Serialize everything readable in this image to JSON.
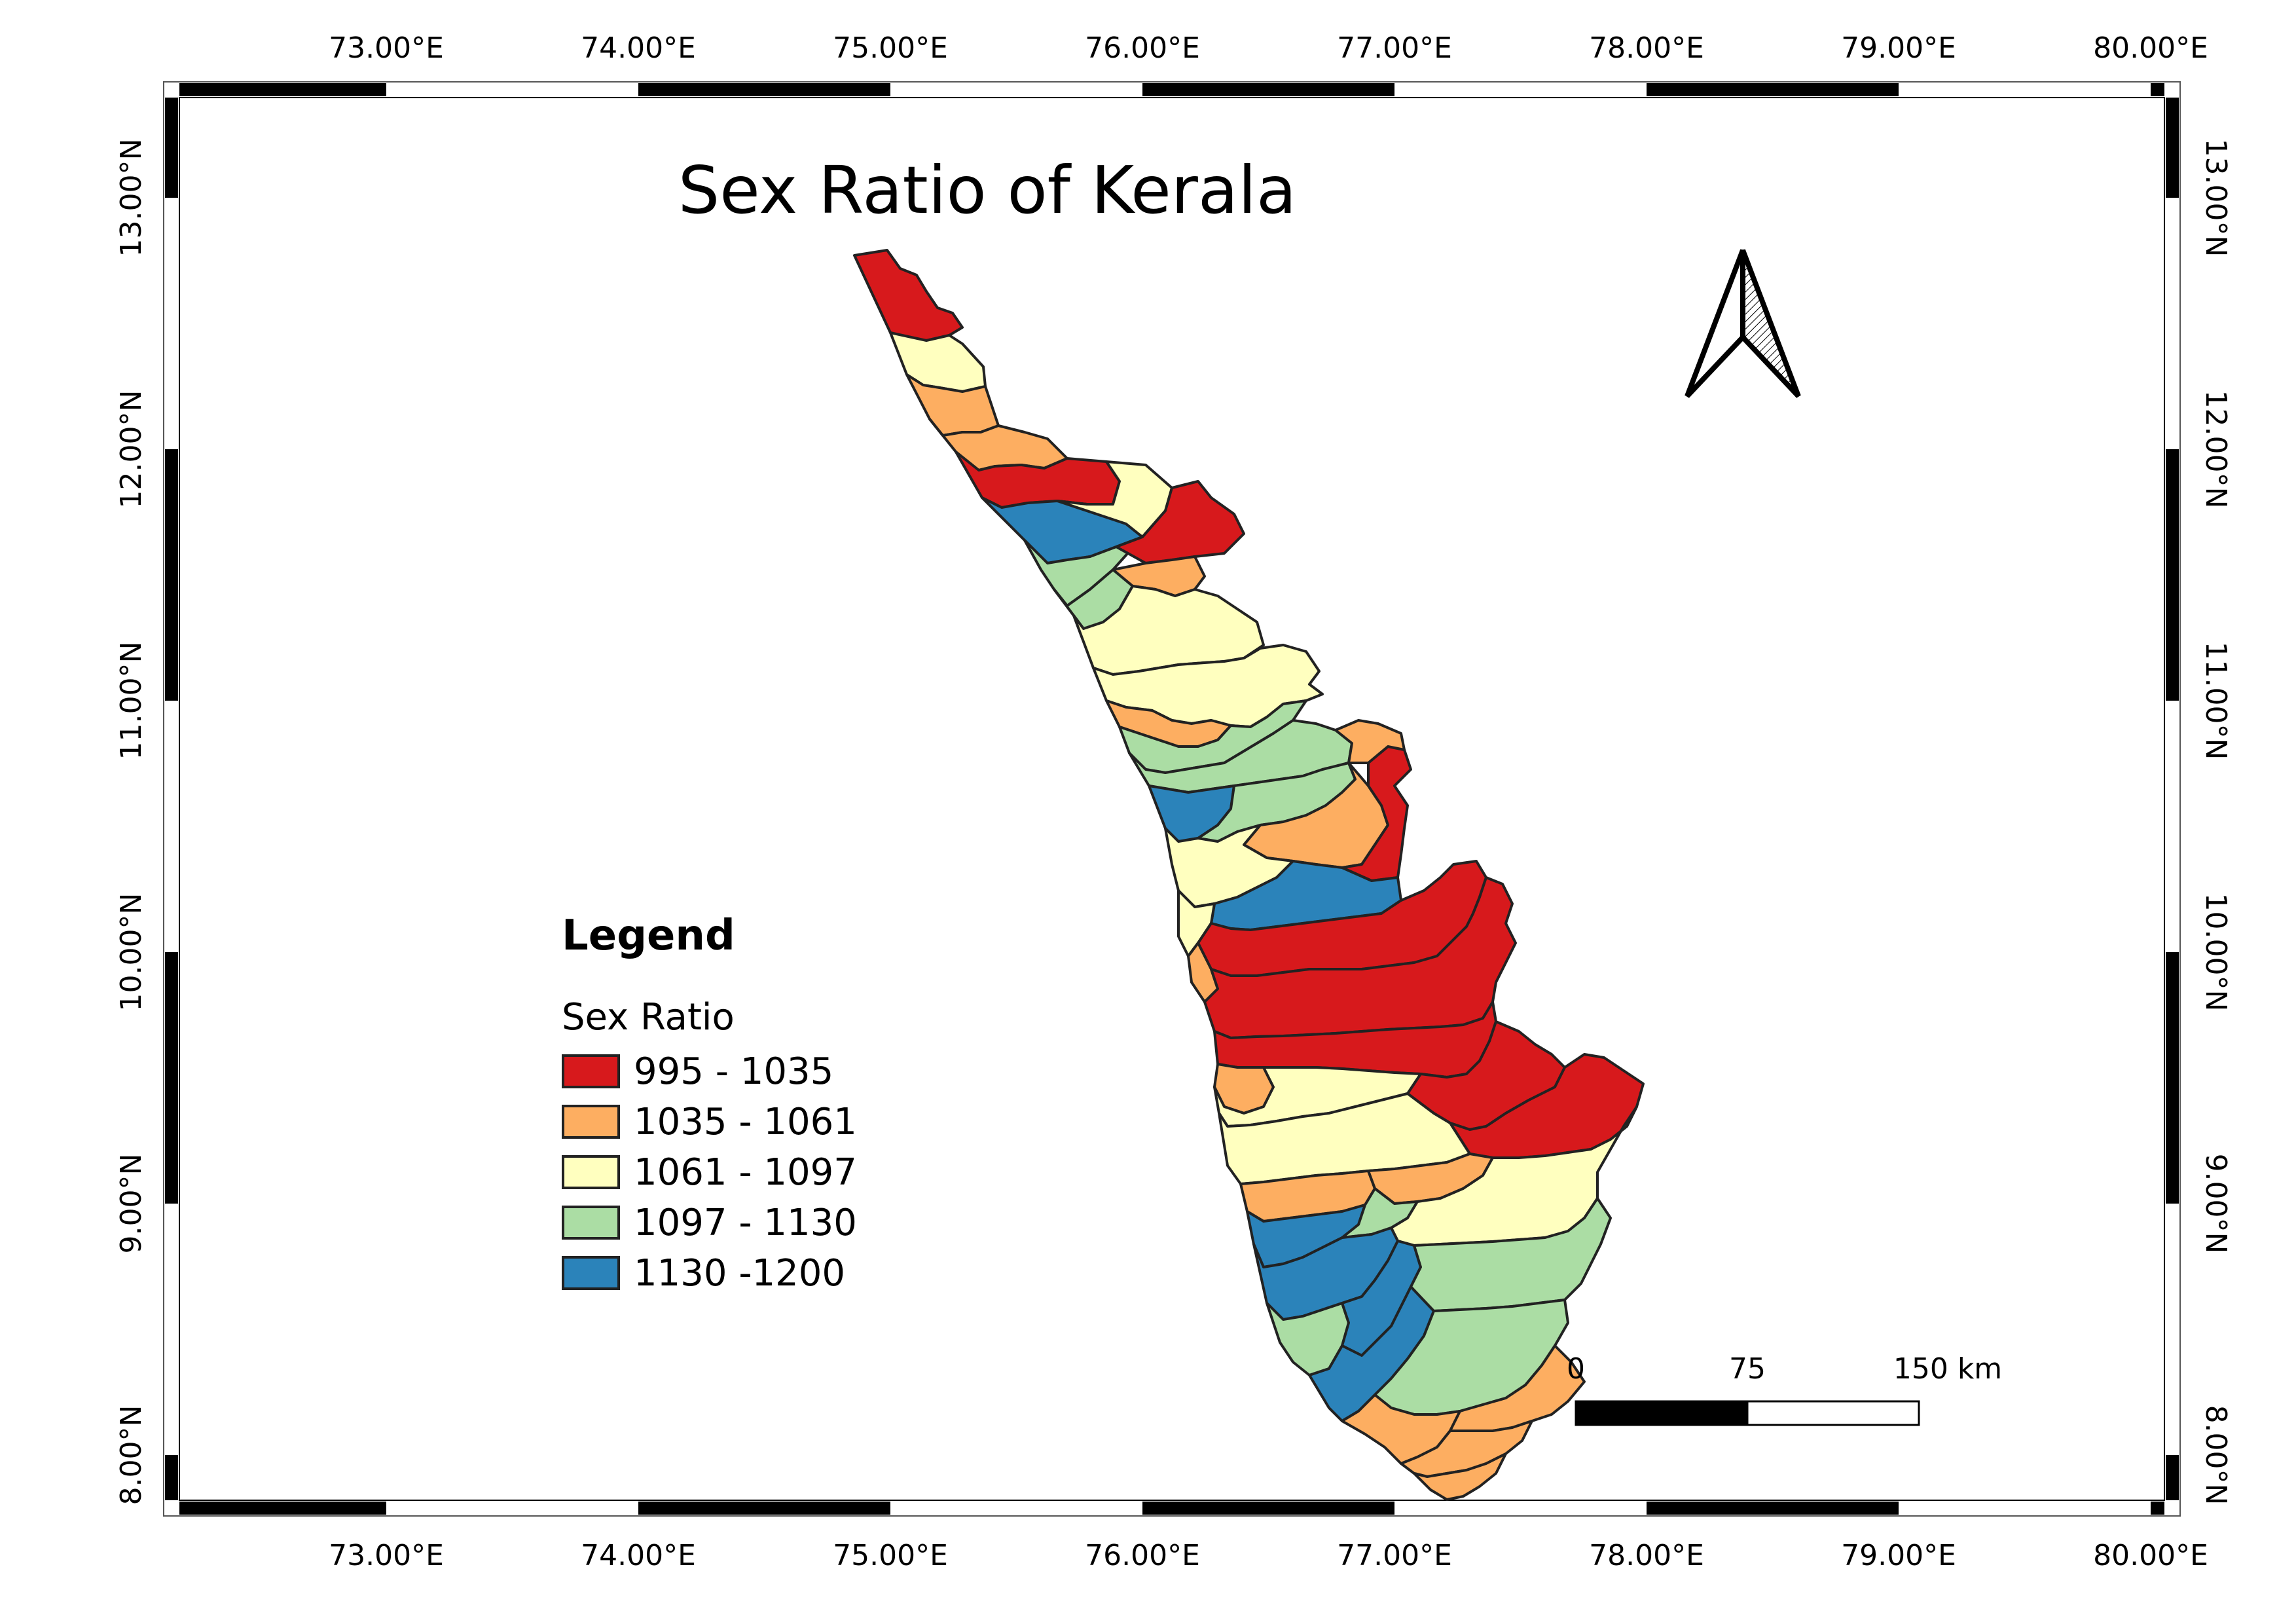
{
  "map": {
    "title": "Sex Ratio of Kerala",
    "legend": {
      "heading": "Legend",
      "subtitle": "Sex Ratio",
      "classes": [
        {
          "label": "995 - 1035",
          "color": "#d7191c"
        },
        {
          "label": "1035 - 1061",
          "color": "#fdae61"
        },
        {
          "label": "1061 - 1097",
          "color": "#ffffbf"
        },
        {
          "label": "1097 - 1130",
          "color": "#abdda4"
        },
        {
          "label": "1130 -1200",
          "color": "#2b83ba"
        }
      ]
    },
    "graticule": {
      "longitudes": [
        "73.00°E",
        "74.00°E",
        "75.00°E",
        "76.00°E",
        "77.00°E",
        "78.00°E",
        "79.00°E",
        "80.00°E"
      ],
      "latitudes": [
        "13.00°N",
        "12.00°N",
        "11.00°N",
        "10.00°N",
        "9.00°N",
        "8.00°N"
      ]
    },
    "scale_bar": {
      "labels": [
        "0",
        "75",
        "150 km"
      ]
    },
    "north_arrow": {
      "icon": "north-arrow-icon"
    }
  }
}
